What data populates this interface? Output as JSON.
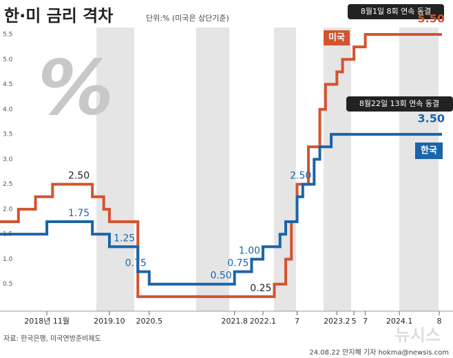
{
  "chart_data": {
    "type": "step",
    "title": "한·미 금리 격차",
    "subtitle": "단위:% (미국은 상단기준)",
    "icon": "%",
    "source": "자료: 한국은행, 미국연방준비제도",
    "credit": "24.08.22 안지혜 기자 hokma@newsis.com",
    "watermark": "뉴시스",
    "annotations": [
      "8월1일 8회 연속 동결",
      "8월22일 13회 연속 동결"
    ],
    "xlim": [
      "2018-03",
      "2024-08"
    ],
    "xticks": [
      {
        "value": "2018-11",
        "label": "2018년 11월"
      },
      {
        "value": "2019-10",
        "label": "2019.10"
      },
      {
        "value": "2020-05",
        "label": "2020.5"
      },
      {
        "value": "2021-08",
        "label": "2021.8"
      },
      {
        "value": "2022-01",
        "label": "2022.1"
      },
      {
        "value": "2022-07",
        "label": "7"
      },
      {
        "value": "2023-02",
        "label": "2023.2"
      },
      {
        "value": "2023-05",
        "label": "5"
      },
      {
        "value": "2023-07",
        "label": "7"
      },
      {
        "value": "2024-01",
        "label": "2024.1"
      },
      {
        "value": "2024-08",
        "label": "8"
      }
    ],
    "ylim": [
      0,
      5.5
    ],
    "yticks": [
      0.5,
      {
        "value": 1,
        "label": "1.0"
      },
      1.5,
      {
        "value": 2,
        "label": "2.0"
      },
      2.5,
      {
        "value": 3,
        "label": "3.0"
      },
      3.5,
      {
        "value": 4,
        "label": "4.0"
      },
      4.5,
      {
        "value": 5,
        "label": "5.0"
      },
      5.5
    ],
    "series": [
      {
        "name": "미국",
        "color": "#d4532f",
        "x": [
          "2018-03",
          "2018-06",
          "2018-09",
          "2018-12",
          "2019-07",
          "2019-09",
          "2019-10",
          "2020-03",
          "2022-03",
          "2022-05",
          "2022-06",
          "2022-07",
          "2022-09",
          "2022-11",
          "2022-12",
          "2023-02",
          "2023-03",
          "2023-05",
          "2023-07",
          "2024-08"
        ],
        "values": [
          1.75,
          2.0,
          2.25,
          2.5,
          2.25,
          2.0,
          1.75,
          0.25,
          0.5,
          1.0,
          1.75,
          2.5,
          3.25,
          4.0,
          4.5,
          4.75,
          5.0,
          5.25,
          5.5,
          5.5
        ],
        "value_labels": [
          null,
          null,
          null,
          "2.50",
          null,
          null,
          null,
          "0.25",
          null,
          null,
          null,
          null,
          null,
          null,
          null,
          null,
          null,
          null,
          null,
          "5.50"
        ]
      },
      {
        "name": "한국",
        "color": "#1b64a9",
        "x": [
          "2018-03",
          "2018-11",
          "2019-07",
          "2019-10",
          "2020-03",
          "2020-05",
          "2021-08",
          "2021-11",
          "2022-01",
          "2022-04",
          "2022-05",
          "2022-07",
          "2022-08",
          "2022-10",
          "2022-11",
          "2023-01",
          "2024-08"
        ],
        "values": [
          1.5,
          1.75,
          1.5,
          1.25,
          0.75,
          0.5,
          0.75,
          1.0,
          1.25,
          1.5,
          1.75,
          2.25,
          2.5,
          3.0,
          3.25,
          3.5,
          3.5
        ],
        "value_labels": [
          null,
          "1.75",
          null,
          "1.25",
          "0.75",
          "0.50",
          "0.75",
          "1.00",
          null,
          null,
          null,
          null,
          "2.50",
          null,
          null,
          null,
          "3.50"
        ]
      }
    ]
  }
}
